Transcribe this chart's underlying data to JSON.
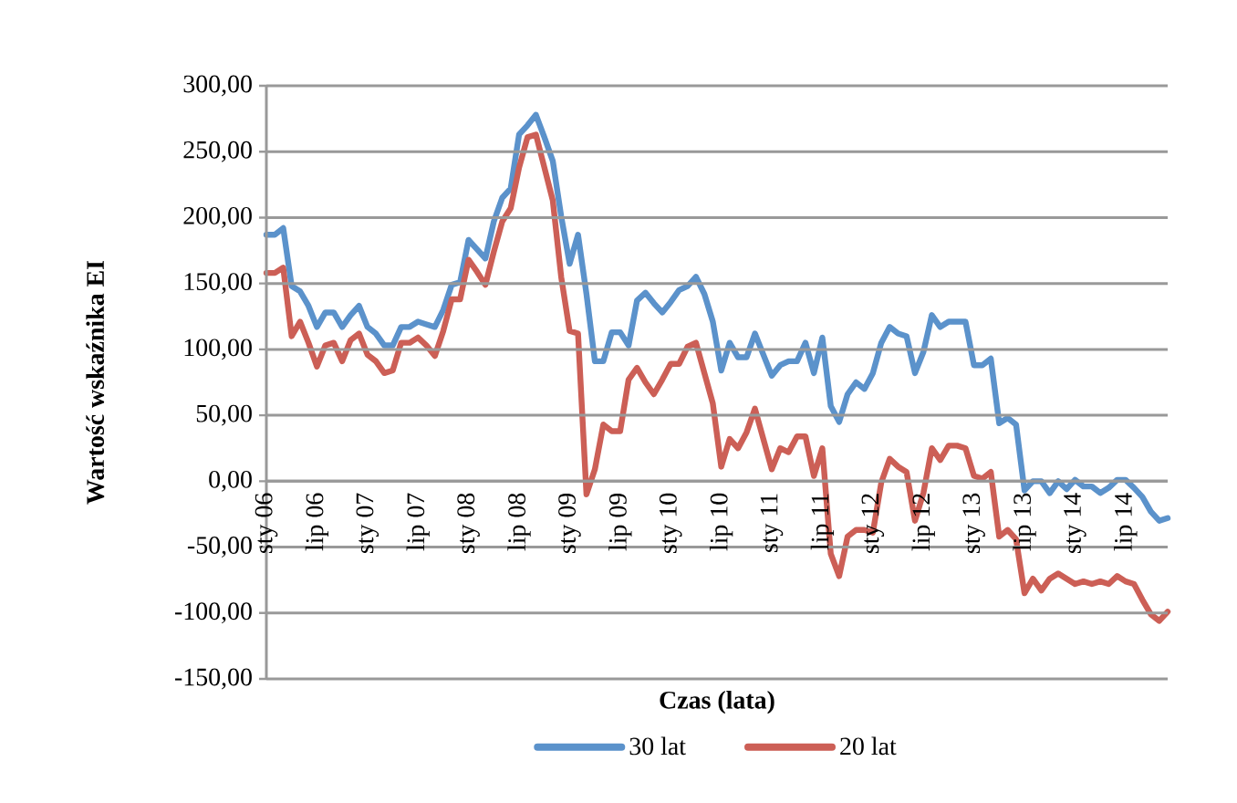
{
  "chart_data": {
    "type": "line",
    "xlabel": "Czas (lata)",
    "ylabel": "Wartość wskaźnika EI",
    "categories": [
      "sty 06",
      null,
      null,
      null,
      null,
      null,
      "lip 06",
      null,
      null,
      null,
      null,
      null,
      "sty 07",
      null,
      null,
      null,
      null,
      null,
      "lip 07",
      null,
      null,
      null,
      null,
      null,
      "sty 08",
      null,
      null,
      null,
      null,
      null,
      "lip 08",
      null,
      null,
      null,
      null,
      null,
      "sty 09",
      null,
      null,
      null,
      null,
      null,
      "lip 09",
      null,
      null,
      null,
      null,
      null,
      "sty 10",
      null,
      null,
      null,
      null,
      null,
      "lip 10",
      null,
      null,
      null,
      null,
      null,
      "sty 11",
      null,
      null,
      null,
      null,
      null,
      "lip 11",
      null,
      null,
      null,
      null,
      null,
      "sty 12",
      null,
      null,
      null,
      null,
      null,
      "lip 12",
      null,
      null,
      null,
      null,
      null,
      "sty 13",
      null,
      null,
      null,
      null,
      null,
      "lip 13",
      null,
      null,
      null,
      null,
      null,
      "sty 14",
      null,
      null,
      null,
      null,
      null,
      "lip 14",
      null,
      null,
      null,
      null,
      null
    ],
    "series": [
      {
        "name": "30 lat",
        "color": "#5b92cb",
        "values": [
          187,
          187,
          192,
          148,
          144,
          133,
          117,
          128,
          128,
          117,
          126,
          133,
          117,
          112,
          103,
          103,
          117,
          117,
          121,
          119,
          117,
          130,
          149,
          151,
          183,
          176,
          169,
          197,
          215,
          222,
          263,
          270,
          278,
          261,
          243,
          201,
          165,
          187,
          142,
          91,
          91,
          113,
          113,
          103,
          137,
          143,
          135,
          128,
          136,
          145,
          148,
          155,
          142,
          121,
          84,
          105,
          94,
          94,
          112,
          96,
          80,
          88,
          91,
          91,
          105,
          82,
          109,
          57,
          45,
          66,
          75,
          70,
          82,
          105,
          117,
          112,
          110,
          82,
          98,
          126,
          117,
          121,
          121,
          121,
          88,
          88,
          93,
          44,
          48,
          43,
          -7,
          0,
          0,
          -9,
          0,
          -6,
          1,
          -4,
          -4,
          -9,
          -5,
          1,
          1,
          -5,
          -12,
          -23,
          -30,
          -28
        ]
      },
      {
        "name": "20 lat",
        "color": "#cc5f56",
        "values": [
          158,
          158,
          162,
          110,
          121,
          105,
          87,
          103,
          105,
          91,
          107,
          112,
          96,
          91,
          82,
          84,
          105,
          105,
          109,
          103,
          95,
          114,
          138,
          138,
          168,
          159,
          149,
          174,
          197,
          207,
          238,
          261,
          263,
          238,
          213,
          155,
          114,
          112,
          -10,
          9,
          43,
          38,
          38,
          77,
          86,
          75,
          66,
          77,
          89,
          89,
          102,
          105,
          82,
          59,
          11,
          32,
          25,
          37,
          55,
          32,
          9,
          25,
          22,
          34,
          34,
          4,
          25,
          -55,
          -72,
          -42,
          -37,
          -37,
          -39,
          -1,
          17,
          11,
          7,
          -30,
          -9,
          25,
          16,
          27,
          27,
          25,
          4,
          2,
          7,
          -42,
          -37,
          -44,
          -85,
          -74,
          -83,
          -74,
          -70,
          -74,
          -78,
          -76,
          -78,
          -76,
          -78,
          -72,
          -76,
          -78,
          -90,
          -101,
          -106,
          -99
        ]
      }
    ],
    "ylim": [
      -150,
      300
    ],
    "yticks": [
      {
        "value": -150,
        "label": "-150,00"
      },
      {
        "value": -100,
        "label": "-100,00"
      },
      {
        "value": -50,
        "label": "-50,00"
      },
      {
        "value": 0,
        "label": "0,00"
      },
      {
        "value": 50,
        "label": "50,00"
      },
      {
        "value": 100,
        "label": "100,00"
      },
      {
        "value": 150,
        "label": "150,00"
      },
      {
        "value": 200,
        "label": "200,00"
      },
      {
        "value": 250,
        "label": "250,00"
      },
      {
        "value": 300,
        "label": "300,00"
      }
    ],
    "grid": "y",
    "legend": "bottom"
  }
}
